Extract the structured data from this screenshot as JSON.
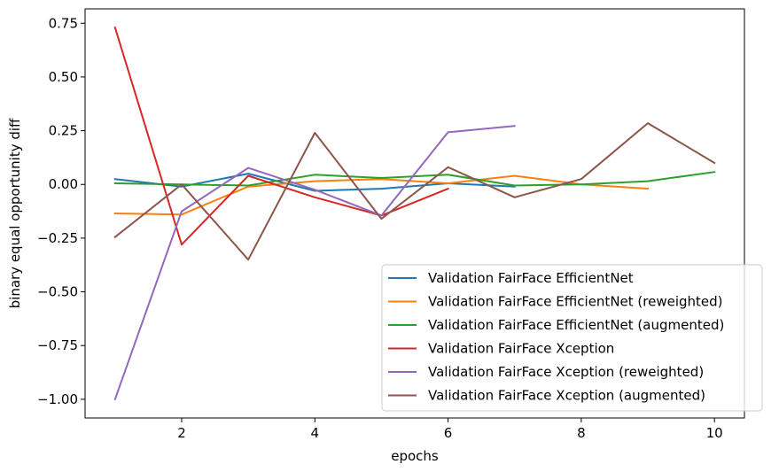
{
  "chart_data": {
    "type": "line",
    "title": "",
    "xlabel": "epochs",
    "ylabel": "binary equal opportunity diff",
    "xlim": [
      0.55,
      10.45
    ],
    "ylim": [
      -1.087,
      0.817
    ],
    "xticks": [
      2,
      4,
      6,
      8,
      10
    ],
    "yticks": [
      0.75,
      0.5,
      0.25,
      0.0,
      -0.25,
      -0.5,
      -0.75,
      -1.0
    ],
    "xtick_labels": [
      "2",
      "4",
      "6",
      "8",
      "10"
    ],
    "ytick_labels": [
      "0.75",
      "0.50",
      "0.25",
      "0.00",
      "−0.25",
      "−0.50",
      "−0.75",
      "−1.00"
    ],
    "grid": false,
    "legend_position": "lower-right",
    "series": [
      {
        "name": "Validation FairFace EfficientNet",
        "color": "#1f77b4",
        "x": [
          1,
          2,
          3,
          4,
          5,
          6,
          7
        ],
        "values": [
          0.025,
          -0.01,
          0.05,
          -0.03,
          -0.02,
          0.005,
          -0.01
        ]
      },
      {
        "name": "Validation FairFace EfficientNet (reweighted)",
        "color": "#ff7f0e",
        "x": [
          1,
          2,
          3,
          4,
          5,
          6,
          7,
          8,
          9
        ],
        "values": [
          -0.135,
          -0.14,
          -0.01,
          0.015,
          0.025,
          0.005,
          0.04,
          0.0,
          -0.02
        ]
      },
      {
        "name": "Validation FairFace EfficientNet (augmented)",
        "color": "#2ca02c",
        "x": [
          1,
          2,
          3,
          4,
          5,
          6,
          7,
          8,
          9,
          10
        ],
        "values": [
          0.005,
          0.0,
          -0.005,
          0.045,
          0.03,
          0.045,
          -0.005,
          0.0,
          0.015,
          0.058
        ]
      },
      {
        "name": "Validation FairFace Xception",
        "color": "#d62728",
        "x": [
          1,
          2,
          3,
          4,
          5,
          6
        ],
        "values": [
          0.73,
          -0.28,
          0.04,
          -0.06,
          -0.145,
          -0.02
        ]
      },
      {
        "name": "Validation FairFace Xception (reweighted)",
        "color": "#9467bd",
        "x": [
          1,
          2,
          3,
          4,
          5,
          6,
          7
        ],
        "values": [
          -1.0,
          -0.125,
          0.077,
          -0.025,
          -0.145,
          0.243,
          0.272
        ]
      },
      {
        "name": "Validation FairFace Xception (augmented)",
        "color": "#8c564b",
        "x": [
          1,
          2,
          3,
          4,
          5,
          6,
          7,
          8,
          9,
          10
        ],
        "values": [
          -0.245,
          0.0,
          -0.35,
          0.24,
          -0.16,
          0.08,
          -0.06,
          0.025,
          0.285,
          0.1
        ]
      }
    ]
  }
}
